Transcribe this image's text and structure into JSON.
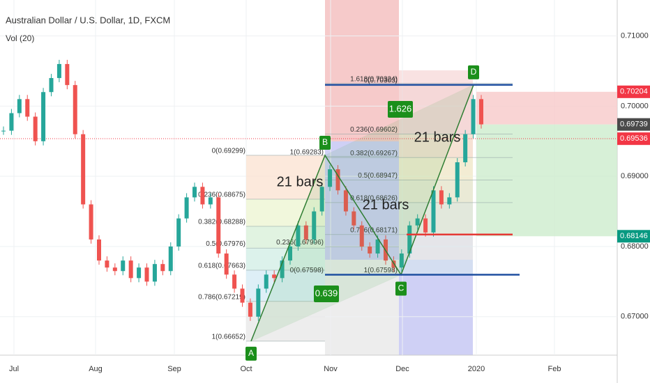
{
  "header": {
    "title": "Australian Dollar / U.S. Dollar, 1D, FXCM",
    "indicator": "Vol (20)"
  },
  "price_axis": {
    "ylim": [
      0.66452,
      0.71512
    ],
    "ticks": [
      {
        "value": 0.71,
        "label": "0.71000"
      },
      {
        "value": 0.7,
        "label": "0.70000"
      },
      {
        "value": 0.69,
        "label": "0.69000"
      },
      {
        "value": 0.68,
        "label": "0.68000"
      },
      {
        "value": 0.67,
        "label": "0.67000"
      }
    ],
    "markers": [
      {
        "value": 0.70204,
        "label": "0.70204",
        "color": "#f23645"
      },
      {
        "value": 0.69739,
        "label": "0.69739",
        "color": "#4a4a4a"
      },
      {
        "value": 0.69536,
        "label": "0.69536",
        "color": "#f23645"
      },
      {
        "value": 0.68146,
        "label": "0.68146",
        "color": "#089981"
      }
    ]
  },
  "time_axis": [
    "Jul",
    "Aug",
    "Sep",
    "Oct",
    "Nov",
    "Dec",
    "2020",
    "Feb"
  ],
  "closes": [
    0.6965,
    0.699,
    0.701,
    0.6985,
    0.695,
    0.702,
    0.704,
    0.706,
    0.703,
    0.696,
    0.686,
    0.681,
    0.678,
    0.677,
    0.6765,
    0.678,
    0.6755,
    0.677,
    0.675,
    0.6775,
    0.6765,
    0.68,
    0.684,
    0.687,
    0.6885,
    0.686,
    0.687,
    0.679,
    0.676,
    0.674,
    0.672,
    0.67,
    0.674,
    0.676,
    0.6755,
    0.678,
    0.68,
    0.683,
    0.681,
    0.685,
    0.6885,
    0.691,
    0.688,
    0.685,
    0.683,
    0.68,
    0.679,
    0.681,
    0.678,
    0.677,
    0.679,
    0.683,
    0.684,
    0.682,
    0.688,
    0.686,
    0.687,
    0.692,
    0.696,
    0.701,
    0.6974
  ],
  "pattern": [
    {
      "label": "A",
      "value": 0.66652
    },
    {
      "label": "B",
      "value": 0.69299
    },
    {
      "label": "C",
      "value": 0.67598
    },
    {
      "label": "D",
      "value": 0.70303
    }
  ],
  "ratios": [
    "0.639",
    "1.626"
  ],
  "bar_counts": [
    "21 bars",
    "21 bars",
    "21 bars"
  ],
  "fibs": [
    [
      {
        "label": "0(0.69299)",
        "value": 0.69299
      },
      {
        "label": "0.236(0.68675)",
        "value": 0.68675
      },
      {
        "label": "0.382(0.68288)",
        "value": 0.68288
      },
      {
        "label": "0.5(0.67976)",
        "value": 0.67976
      },
      {
        "label": "0.618(0.67663)",
        "value": 0.67663
      },
      {
        "label": "0.786(0.67219)",
        "value": 0.67219
      },
      {
        "label": "1(0.66652)",
        "value": 0.66652
      }
    ],
    [
      {
        "label": "1(0.69283)",
        "value": 0.69283
      },
      {
        "label": "0.236(0.67996)",
        "value": 0.67996
      },
      {
        "label": "0(0.67598)",
        "value": 0.67598
      }
    ],
    [
      {
        "label": "1.618(0.70324)",
        "value": 0.70324
      },
      {
        "label": "0(0.70303)",
        "value": 0.70303
      },
      {
        "label": "0.236(0.69602)",
        "value": 0.69602
      },
      {
        "label": "0.382(0.69267)",
        "value": 0.69267
      },
      {
        "label": "0.5(0.68947)",
        "value": 0.68947
      },
      {
        "label": "0.618(0.68626)",
        "value": 0.68626
      },
      {
        "label": "0.786(0.68171)",
        "value": 0.68171
      },
      {
        "label": "1(0.67598)",
        "value": 0.67598
      }
    ]
  ]
}
